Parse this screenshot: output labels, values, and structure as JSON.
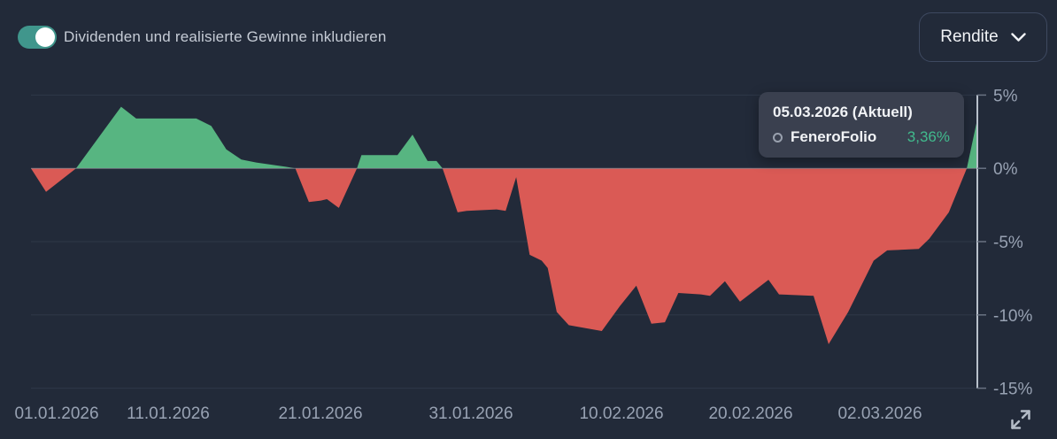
{
  "header": {
    "toggle_label": "Dividenden und realisierte Gewinne inkludieren",
    "toggle_state": "on",
    "dropdown_label": "Rendite"
  },
  "tooltip": {
    "date": "05.03.2026 (Aktuell)",
    "series": "FeneroFolio",
    "value": "3,36%"
  },
  "icons": {
    "dropdown_chevron": "chevron-down",
    "bottom_right": "expand-resize"
  },
  "colors": {
    "background": "#222A39",
    "positive_fill": "#57B581",
    "negative_fill": "#DA5A55",
    "toggle_on": "#40968C",
    "tooltip_bg": "#3A404F",
    "tooltip_value": "#41BA8D",
    "axis_text": "#98A2B3",
    "grid_line": "#2E3848",
    "crosshair": "#B9C1CC",
    "text_primary": "#F1F3F6"
  },
  "chart_data": {
    "type": "area",
    "title": "",
    "xlabel": "",
    "ylabel": "Rendite (%)",
    "series_name": "FeneroFolio",
    "current_value_pct": 3.36,
    "current_date": "05.03.2026",
    "x_unit": "days since 01.01.2026",
    "x_max": 63,
    "ylim": [
      -15,
      5
    ],
    "y_ticks": [
      5,
      0,
      -5,
      -10,
      -15
    ],
    "y_tick_labels": [
      "5%",
      "0%",
      "-5%",
      "-10%",
      "-15%"
    ],
    "x_tick_labels": [
      "01.01.2026",
      "11.01.2026",
      "21.01.2026",
      "31.01.2026",
      "10.02.2026",
      "20.02.2026",
      "02.03.2026"
    ],
    "grid": true,
    "legend_position": "tooltip",
    "points": [
      [
        0,
        0
      ],
      [
        1,
        -1.6
      ],
      [
        3,
        0
      ],
      [
        6,
        4.2
      ],
      [
        7,
        3.4
      ],
      [
        11,
        3.4
      ],
      [
        12,
        2.9
      ],
      [
        13,
        1.3
      ],
      [
        14,
        0.6
      ],
      [
        15,
        0.4
      ],
      [
        17,
        0.1
      ],
      [
        17.6,
        0
      ],
      [
        18.5,
        -2.3
      ],
      [
        19.3,
        -2.2
      ],
      [
        19.7,
        -2.1
      ],
      [
        20.5,
        -2.7
      ],
      [
        21.7,
        0
      ],
      [
        22,
        0.9
      ],
      [
        24.4,
        0.9
      ],
      [
        25.4,
        2.3
      ],
      [
        26.4,
        0.5
      ],
      [
        27,
        0.5
      ],
      [
        27.4,
        0
      ],
      [
        28.4,
        -3.0
      ],
      [
        29,
        -2.9
      ],
      [
        31,
        -2.8
      ],
      [
        31.6,
        -2.9
      ],
      [
        32.3,
        -0.6
      ],
      [
        33.2,
        -5.9
      ],
      [
        34,
        -6.3
      ],
      [
        34.4,
        -6.8
      ],
      [
        35,
        -9.8
      ],
      [
        35.8,
        -10.7
      ],
      [
        38,
        -11.1
      ],
      [
        39.2,
        -9.4
      ],
      [
        40.3,
        -8.0
      ],
      [
        41.3,
        -10.6
      ],
      [
        42.2,
        -10.5
      ],
      [
        43.1,
        -8.5
      ],
      [
        44.6,
        -8.6
      ],
      [
        45.2,
        -8.7
      ],
      [
        46.2,
        -7.7
      ],
      [
        47.2,
        -9.1
      ],
      [
        49.1,
        -7.6
      ],
      [
        49.8,
        -8.6
      ],
      [
        52.1,
        -8.7
      ],
      [
        53.1,
        -12.0
      ],
      [
        54.4,
        -9.8
      ],
      [
        56.1,
        -6.3
      ],
      [
        57,
        -5.6
      ],
      [
        59.1,
        -5.5
      ],
      [
        59.8,
        -4.8
      ],
      [
        61.1,
        -3.0
      ],
      [
        62.3,
        0
      ],
      [
        63,
        3.36
      ]
    ]
  }
}
